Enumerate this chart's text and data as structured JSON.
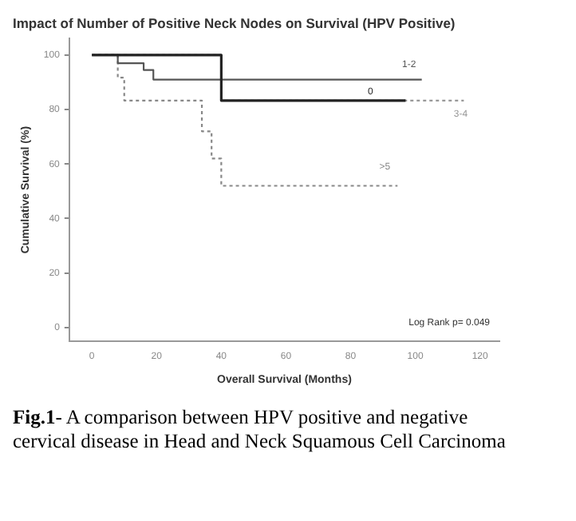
{
  "chart_data": {
    "type": "step",
    "title": "Impact of Number of Positive Neck Nodes on Survival (HPV Positive)",
    "xlabel": "Overall Survival (Months)",
    "ylabel": "Cumulative Survival (%)",
    "series": [
      {
        "name": "0",
        "color": "#222222",
        "line_style": "solid",
        "x": [
          0,
          40,
          40,
          97
        ],
        "values": [
          100,
          100,
          83.3,
          83.3
        ]
      },
      {
        "name": "1-2",
        "color": "#555555",
        "line_style": "solid",
        "x": [
          0,
          8,
          8,
          16,
          16,
          19,
          19,
          102
        ],
        "values": [
          100,
          100,
          97,
          97,
          94.5,
          94.5,
          91,
          91
        ]
      },
      {
        "name": "3-4",
        "color": "#999999",
        "line_style": "dotted",
        "x": [
          0,
          40,
          40,
          115
        ],
        "values": [
          100,
          100,
          83.3,
          83.3
        ]
      },
      {
        "name": ">5",
        "color": "#888888",
        "line_style": "dotted",
        "x": [
          0,
          8,
          8,
          10,
          10,
          34,
          34,
          37,
          37,
          40,
          40,
          94.5
        ],
        "values": [
          100,
          100,
          91.7,
          91.7,
          83.3,
          83.3,
          72,
          72,
          62,
          62,
          52,
          52
        ]
      }
    ],
    "xlim": [
      -7,
      126
    ],
    "xticks": [
      0,
      20,
      40,
      60,
      80,
      100,
      120
    ],
    "ylim": [
      -5,
      106
    ],
    "yticks": [
      0,
      20,
      40,
      60,
      80,
      100
    ],
    "grid": false,
    "legend": false,
    "annotations": [
      "Log Rank p= 0.049",
      "Fig.1- A comparison between HPV positive and negative cervical disease in Head and Neck Squamous Cell Carcinoma"
    ]
  }
}
